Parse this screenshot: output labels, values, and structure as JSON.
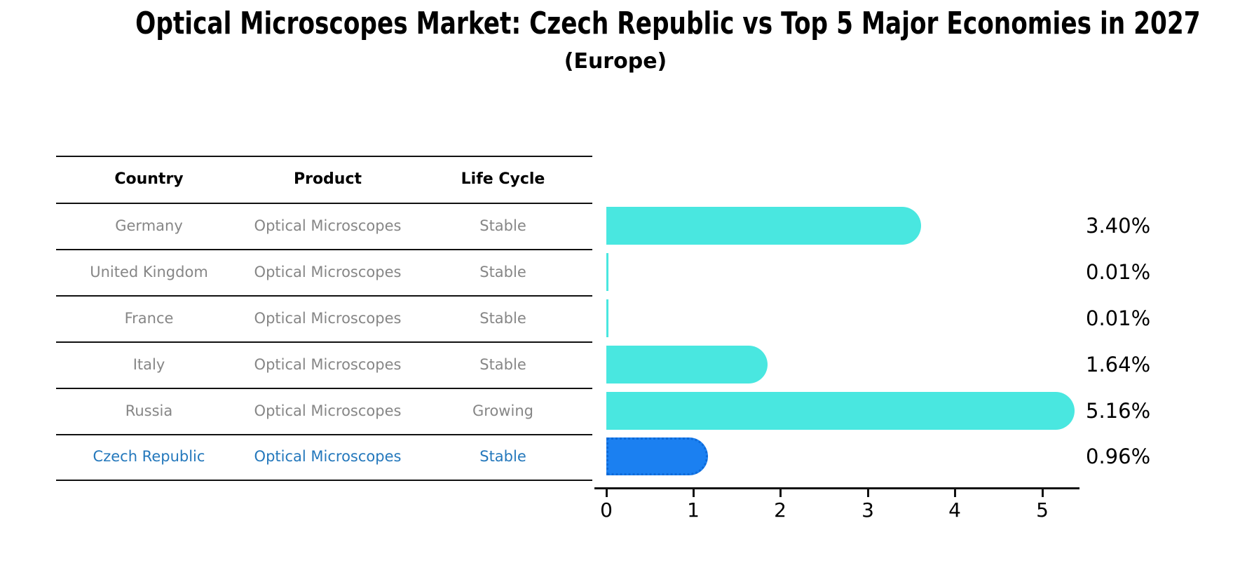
{
  "title": "Optical Microscopes Market: Czech Republic vs Top 5 Major Economies in 2027",
  "subtitle": "(Europe)",
  "table": {
    "headers": [
      "Country",
      "Product",
      "Life Cycle"
    ],
    "rows": [
      {
        "country": "Germany",
        "product": "Optical Microscopes",
        "life_cycle": "Stable",
        "value_label": "3.40%",
        "highlight": false
      },
      {
        "country": "United Kingdom",
        "product": "Optical Microscopes",
        "life_cycle": "Stable",
        "value_label": "0.01%",
        "highlight": false
      },
      {
        "country": "France",
        "product": "Optical Microscopes",
        "life_cycle": "Stable",
        "value_label": "0.01%",
        "highlight": false
      },
      {
        "country": "Italy",
        "product": "Optical Microscopes",
        "life_cycle": "Stable",
        "value_label": "1.64%",
        "highlight": false
      },
      {
        "country": "Russia",
        "product": "Optical Microscopes",
        "life_cycle": "Growing",
        "value_label": "5.16%",
        "highlight": false
      },
      {
        "country": "Czech Republic",
        "product": "Optical Microscopes",
        "life_cycle": "Stable",
        "value_label": "0.96%",
        "highlight": true
      }
    ]
  },
  "chart_data": {
    "type": "bar",
    "orientation": "horizontal",
    "categories": [
      "Germany",
      "United Kingdom",
      "France",
      "Italy",
      "Russia",
      "Czech Republic"
    ],
    "values": [
      3.4,
      0.01,
      0.01,
      1.64,
      5.16,
      0.96
    ],
    "value_labels": [
      "3.40%",
      "0.01%",
      "0.01%",
      "1.64%",
      "5.16%",
      "0.96%"
    ],
    "x_ticks": [
      "0",
      "1",
      "2",
      "3",
      "4",
      "5"
    ],
    "xlim": [
      0,
      5.4
    ],
    "grid": "off",
    "legend": "none",
    "highlight_category": "Czech Republic",
    "colors": {
      "bar": "#49E7E0",
      "highlight_bar": "#1B80F1",
      "highlight_bar_border": "#0E6AD8",
      "highlight_text": "#2478BC",
      "row_text": "#868686",
      "axis": "#111111"
    }
  }
}
